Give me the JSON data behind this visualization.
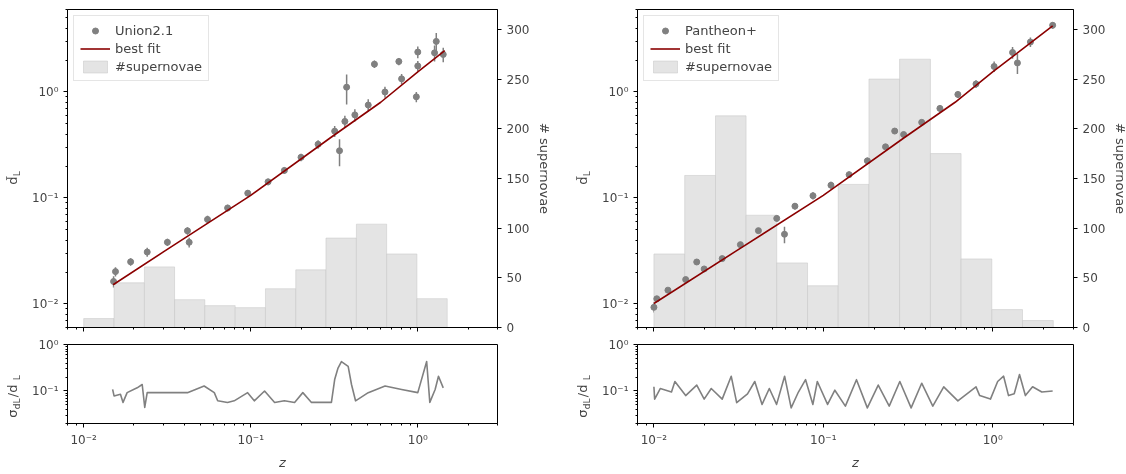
{
  "chart_data": [
    {
      "type": "scatter",
      "ylabel": "d̃$_{L}$",
      "y2label": "# supernovae",
      "log": "xy",
      "xlim": [
        0.008,
        3
      ],
      "ylim": [
        0.006,
        6
      ],
      "y2lim": [
        0,
        320
      ],
      "xticks": [
        {
          "value": 0.01,
          "label": null
        },
        {
          "value": 0.1,
          "label": null
        },
        {
          "value": 1,
          "label": null
        }
      ],
      "yticks": [
        {
          "value": 0.01,
          "label": "10⁻²"
        },
        {
          "value": 0.1,
          "label": "10⁻¹"
        },
        {
          "value": 1,
          "label": "10⁰"
        }
      ],
      "y2ticks": [
        0,
        50,
        100,
        150,
        200,
        250,
        300
      ],
      "tick_labels": "y",
      "legend": "top left",
      "series": [
        {
          "name": "#supernovae",
          "type": "histogram",
          "axis": "y2",
          "color": "#e4e4e4",
          "bins": [
            0.01,
            0.0152,
            0.0231,
            0.035,
            0.0531,
            0.0807,
            0.1225,
            0.186,
            0.282,
            0.429,
            0.651,
            0.988,
            1.5
          ],
          "values": [
            9,
            45,
            61,
            28,
            22,
            20,
            39,
            58,
            90,
            104,
            74,
            29
          ]
        },
        {
          "name": "Union2.1",
          "type": "scatter",
          "marker": "circle",
          "color": "#808080",
          "x": [
            0.0151,
            0.0155,
            0.0191,
            0.024,
            0.0317,
            0.0418,
            0.0428,
            0.0551,
            0.0727,
            0.096,
            0.127,
            0.159,
            0.2,
            0.253,
            0.318,
            0.34,
            0.366,
            0.375,
            0.42,
            0.505,
            0.55,
            0.636,
            0.77,
            0.8,
            0.98,
            1.0,
            1.0,
            1.26,
            1.29,
            1.42
          ],
          "values": [
            0.0163,
            0.0202,
            0.025,
            0.0309,
            0.0382,
            0.049,
            0.0382,
            0.0628,
            0.0805,
            0.111,
            0.142,
            0.182,
            0.242,
            0.321,
            0.427,
            0.279,
            0.528,
            1.11,
            0.608,
            0.753,
            1.83,
            1.0,
            1.94,
            1.33,
            0.9,
            1.76,
            2.38,
            2.34,
            3.0,
            2.26
          ],
          "errors": [
            0.002,
            0.002,
            0.002,
            0.003,
            0.003,
            0.004,
            0.004,
            0.005,
            0.006,
            0.008,
            0.01,
            0.013,
            0.02,
            0.03,
            0.05,
            0.08,
            0.07,
            0.35,
            0.08,
            0.1,
            0.15,
            0.12,
            0.15,
            0.15,
            0.1,
            0.2,
            0.3,
            0.4,
            0.6,
            0.35
          ]
        },
        {
          "name": "best fit",
          "type": "line",
          "color": "#8b0000",
          "x": [
            0.015,
            0.03,
            0.1,
            0.3,
            0.6,
            1.0,
            1.45
          ],
          "values": [
            0.0152,
            0.031,
            0.106,
            0.37,
            0.8,
            1.55,
            2.45
          ]
        }
      ]
    },
    {
      "type": "scatter",
      "ylabel": "d̃$_{L}$",
      "y2label": "# supernovae",
      "log": "xy",
      "xlim": [
        0.008,
        3
      ],
      "ylim": [
        0.006,
        6
      ],
      "y2lim": [
        0,
        320
      ],
      "xticks": [
        {
          "value": 0.01,
          "label": null
        },
        {
          "value": 0.1,
          "label": null
        },
        {
          "value": 1,
          "label": null
        }
      ],
      "yticks": [
        {
          "value": 0.01,
          "label": "10⁻²"
        },
        {
          "value": 0.1,
          "label": "10⁻¹"
        },
        {
          "value": 1,
          "label": "10⁰"
        }
      ],
      "y2ticks": [
        0,
        50,
        100,
        150,
        200,
        250,
        300
      ],
      "tick_labels": "y",
      "legend": "top left",
      "series": [
        {
          "name": "#supernovae",
          "type": "histogram",
          "axis": "y2",
          "color": "#e4e4e4",
          "bins": [
            0.01,
            0.0152,
            0.0231,
            0.035,
            0.0531,
            0.0807,
            0.1225,
            0.186,
            0.282,
            0.429,
            0.651,
            0.988,
            1.5,
            2.28
          ],
          "values": [
            74,
            153,
            213,
            113,
            65,
            42,
            144,
            250,
            270,
            175,
            69,
            18,
            7
          ]
        },
        {
          "name": "Pantheon+",
          "type": "scatter",
          "marker": "circle",
          "color": "#808080",
          "x": [
            0.01,
            0.0104,
            0.0121,
            0.0154,
            0.0179,
            0.0198,
            0.0253,
            0.0324,
            0.0414,
            0.0531,
            0.059,
            0.068,
            0.0869,
            0.111,
            0.142,
            0.182,
            0.233,
            0.264,
            0.298,
            0.381,
            0.488,
            0.623,
            0.797,
            1.02,
            1.31,
            1.4,
            1.67,
            2.26
          ],
          "values": [
            0.0093,
            0.0112,
            0.0135,
            0.017,
            0.0249,
            0.0214,
            0.0268,
            0.0363,
            0.0492,
            0.0642,
            0.0455,
            0.0837,
            0.105,
            0.132,
            0.166,
            0.224,
            0.304,
            0.428,
            0.397,
            0.517,
            0.7,
            0.948,
            1.19,
            1.74,
            2.36,
            1.88,
            2.96,
            4.26
          ],
          "errors": [
            0.001,
            0.001,
            0.001,
            0.0015,
            0.002,
            0.002,
            0.002,
            0.003,
            0.004,
            0.005,
            0.008,
            0.006,
            0.008,
            0.01,
            0.012,
            0.016,
            0.02,
            0.1,
            0.03,
            0.04,
            0.05,
            0.07,
            0.1,
            0.2,
            0.3,
            0.4,
            0.3,
            0.3
          ]
        },
        {
          "name": "best fit",
          "type": "line",
          "color": "#8b0000",
          "x": [
            0.01,
            0.03,
            0.1,
            0.3,
            0.6,
            1.0,
            2.26
          ],
          "values": [
            0.0101,
            0.031,
            0.106,
            0.37,
            0.8,
            1.55,
            4.2
          ]
        }
      ]
    },
    {
      "type": "line",
      "xlabel": "z",
      "ylabel": "σ$_{dL}$/d$_{L}$",
      "log": "xy",
      "xlim": [
        0.008,
        3
      ],
      "ylim": [
        0.02,
        1
      ],
      "xticks": [
        {
          "value": 0.01,
          "label": "10⁻²"
        },
        {
          "value": 0.1,
          "label": "10⁻¹"
        },
        {
          "value": 1,
          "label": "10⁰"
        }
      ],
      "yticks": [
        {
          "value": 0.1,
          "label": "10⁻¹"
        },
        {
          "value": 1,
          "label": "10⁰"
        }
      ],
      "series": [
        {
          "color": "#808080",
          "x": [
            0.0149,
            0.0152,
            0.0166,
            0.0172,
            0.0182,
            0.0209,
            0.0224,
            0.0232,
            0.024,
            0.0289,
            0.0348,
            0.0418,
            0.0526,
            0.0605,
            0.0634,
            0.0726,
            0.0796,
            0.0958,
            0.105,
            0.121,
            0.139,
            0.159,
            0.183,
            0.205,
            0.231,
            0.264,
            0.304,
            0.318,
            0.333,
            0.349,
            0.383,
            0.401,
            0.424,
            0.505,
            0.637,
            0.8,
            1.0,
            1.13,
            1.18,
            1.27,
            1.33,
            1.42
          ],
          "values": [
            0.108,
            0.0784,
            0.085,
            0.0568,
            0.0922,
            0.117,
            0.138,
            0.0445,
            0.0922,
            0.0922,
            0.0922,
            0.0922,
            0.128,
            0.0922,
            0.0615,
            0.0568,
            0.0615,
            0.0922,
            0.0615,
            0.1,
            0.0568,
            0.0615,
            0.0568,
            0.0922,
            0.0568,
            0.0568,
            0.0568,
            0.176,
            0.311,
            0.43,
            0.337,
            0.138,
            0.0615,
            0.0922,
            0.128,
            0.108,
            0.0922,
            0.43,
            0.0568,
            0.108,
            0.208,
            0.117
          ]
        }
      ]
    },
    {
      "type": "line",
      "xlabel": "z",
      "ylabel": "σ$_{dL}$/d$_{L}$",
      "log": "xy",
      "xlim": [
        0.008,
        3
      ],
      "ylim": [
        0.02,
        1
      ],
      "xticks": [
        {
          "value": 0.01,
          "label": "10⁻²"
        },
        {
          "value": 0.1,
          "label": "10⁻¹"
        },
        {
          "value": 1,
          "label": "10⁰"
        }
      ],
      "yticks": [
        {
          "value": 0.1,
          "label": "10⁻¹"
        },
        {
          "value": 1,
          "label": "10⁰"
        }
      ],
      "series": [
        {
          "color": "#808080",
          "x": [
            0.01,
            0.0101,
            0.0109,
            0.0127,
            0.0133,
            0.0154,
            0.0179,
            0.0198,
            0.0218,
            0.0253,
            0.0286,
            0.0308,
            0.0357,
            0.0394,
            0.0435,
            0.048,
            0.053,
            0.0591,
            0.0646,
            0.0713,
            0.0786,
            0.0868,
            0.0922,
            0.106,
            0.117,
            0.135,
            0.157,
            0.182,
            0.211,
            0.245,
            0.283,
            0.33,
            0.381,
            0.443,
            0.514,
            0.623,
            0.797,
            0.838,
            0.97,
            1.07,
            1.16,
            1.24,
            1.34,
            1.44,
            1.56,
            1.72,
            1.95,
            2.26
          ],
          "values": [
            0.123,
            0.067,
            0.113,
            0.095,
            0.16,
            0.0797,
            0.134,
            0.067,
            0.113,
            0.067,
            0.208,
            0.0562,
            0.087,
            0.16,
            0.0515,
            0.113,
            0.0515,
            0.208,
            0.0433,
            0.095,
            0.175,
            0.0515,
            0.16,
            0.0515,
            0.104,
            0.0472,
            0.175,
            0.0433,
            0.134,
            0.0472,
            0.16,
            0.0433,
            0.147,
            0.0472,
            0.123,
            0.0614,
            0.123,
            0.0797,
            0.067,
            0.16,
            0.208,
            0.0797,
            0.087,
            0.227,
            0.0797,
            0.123,
            0.095,
            0.1
          ]
        }
      ]
    }
  ]
}
